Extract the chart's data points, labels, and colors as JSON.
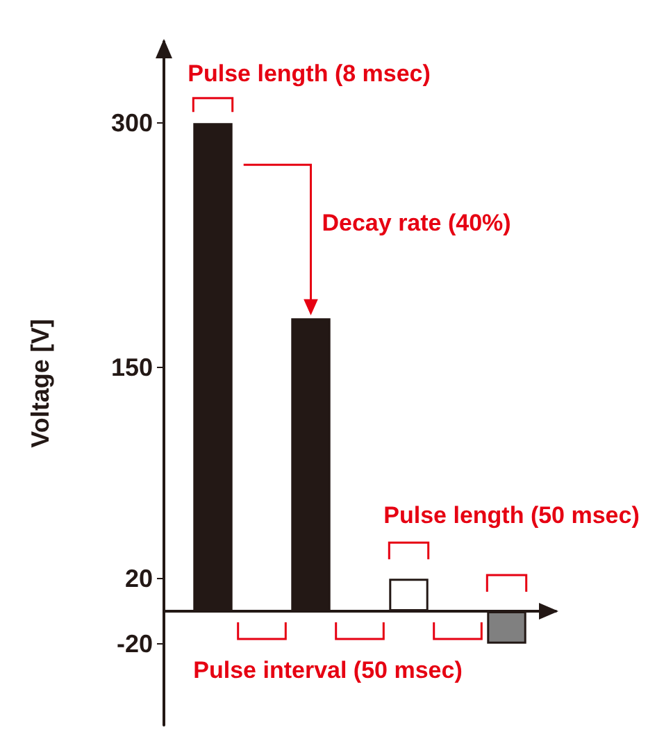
{
  "chart_data": {
    "type": "bar",
    "ylabel": "Voltage [V]",
    "categories": [
      null,
      null,
      null,
      null
    ],
    "values": [
      300,
      180,
      20,
      -20
    ],
    "colors": [
      "#231815",
      "#231815",
      "#ffffff",
      "#808080"
    ],
    "ylim": [
      -70,
      350
    ],
    "yticks": [
      -20,
      20,
      150,
      300
    ],
    "grid": false,
    "annotations": [
      "Pulse length (8 msec)",
      "Decay rate (40%)",
      "Pulse length (50 msec)",
      "Pulse interval (50 msec)"
    ]
  }
}
